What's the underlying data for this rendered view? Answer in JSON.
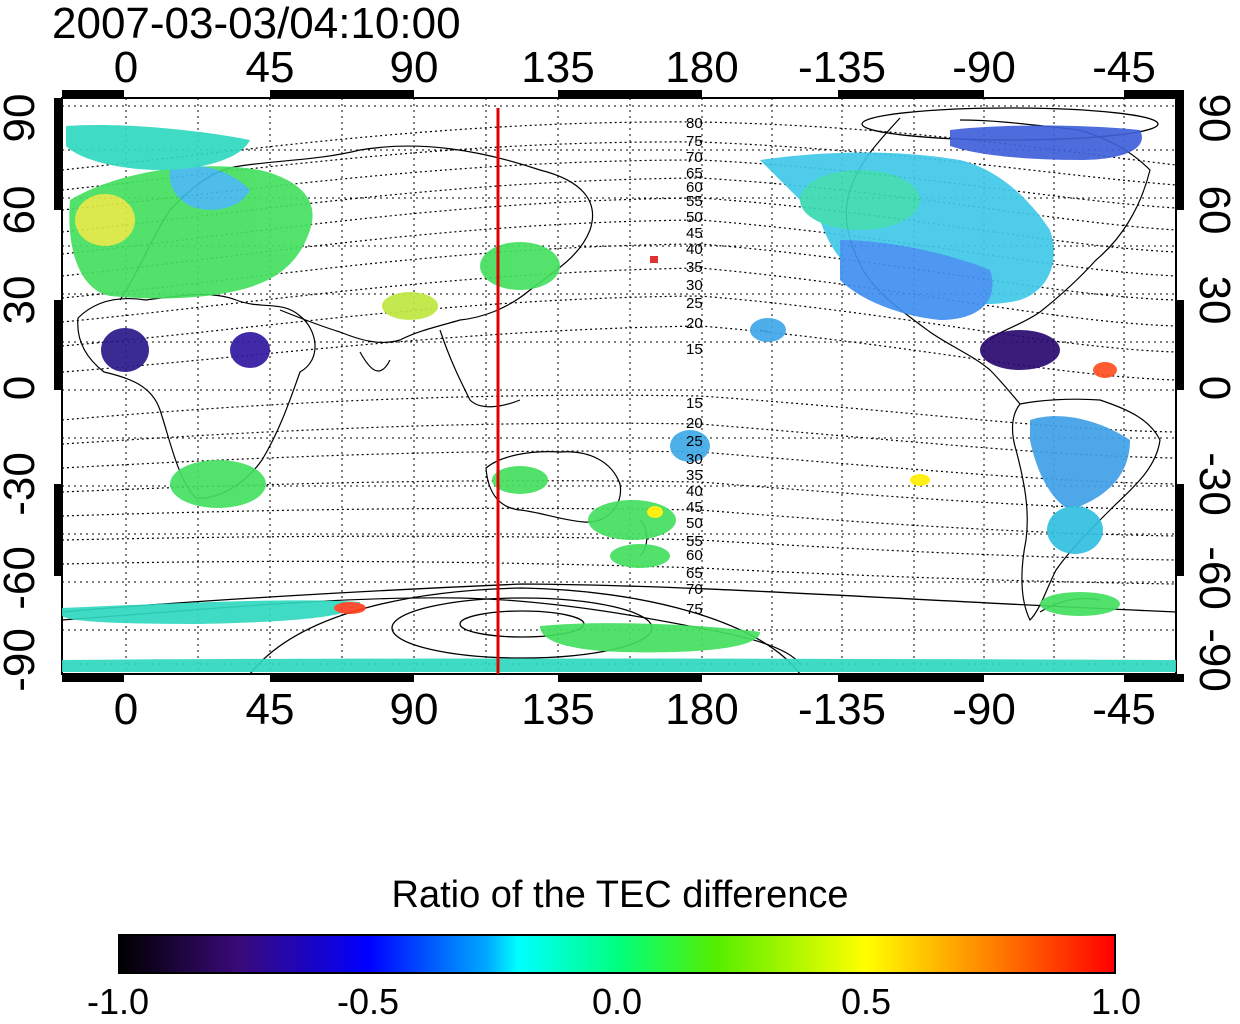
{
  "title": "2007-03-03/04:10:00",
  "map": {
    "lon_ticks": [
      "0",
      "45",
      "90",
      "135",
      "180",
      "-135",
      "-90",
      "-45"
    ],
    "lat_ticks": [
      "90",
      "60",
      "30",
      "0",
      "-30",
      "-60",
      "-90"
    ],
    "meridian_line": {
      "longitude": 120,
      "color": "#e00000"
    },
    "contour_labels_north": [
      "80",
      "75",
      "70",
      "65",
      "60",
      "55",
      "50",
      "45",
      "40",
      "35",
      "30",
      "25",
      "20",
      "15"
    ],
    "contour_labels_south": [
      "15",
      "20",
      "25",
      "30",
      "35",
      "40",
      "45",
      "50",
      "55",
      "60",
      "65",
      "70",
      "75"
    ]
  },
  "colorbar": {
    "title": "Ratio of the TEC difference",
    "ticks": [
      "-1.0",
      "-0.5",
      "0.0",
      "0.5",
      "1.0"
    ],
    "colors": [
      "#000000",
      "#3a0a7a",
      "#0000ff",
      "#00aaff",
      "#00ffff",
      "#00ff80",
      "#55ee00",
      "#ffff00",
      "#ff8800",
      "#ff0000"
    ]
  }
}
